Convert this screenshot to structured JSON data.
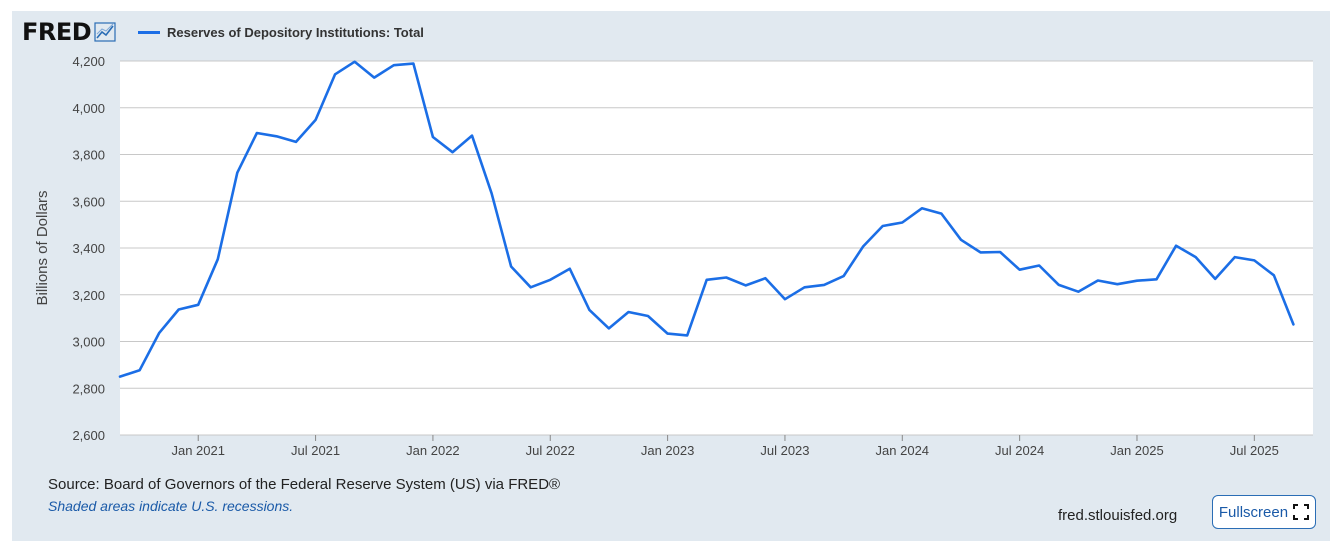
{
  "header": {
    "logo_text": "FRED",
    "legend_label": "Reserves of Depository Institutions: Total",
    "series_color": "#1b6ee6"
  },
  "footer": {
    "source": "Source: Board of Governors of the Federal Reserve System (US) via FRED®",
    "recession_note": "Shaded areas indicate U.S. recessions.",
    "site": "fred.stlouisfed.org",
    "fullscreen_label": "Fullscreen"
  },
  "icons": {
    "logo_chart": "line-chart-icon",
    "fullscreen": "fullscreen-icon"
  },
  "chart_data": {
    "type": "line",
    "ylabel": "Billions of Dollars",
    "ylim": [
      2600,
      4200
    ],
    "yticks": [
      2600,
      2800,
      3000,
      3200,
      3400,
      3600,
      3800,
      4000,
      4200
    ],
    "xlim": [
      "2020-09",
      "2025-10"
    ],
    "xticks": [
      {
        "date": "2021-01",
        "label": "Jan 2021"
      },
      {
        "date": "2021-07",
        "label": "Jul 2021"
      },
      {
        "date": "2022-01",
        "label": "Jan 2022"
      },
      {
        "date": "2022-07",
        "label": "Jul 2022"
      },
      {
        "date": "2023-01",
        "label": "Jan 2023"
      },
      {
        "date": "2023-07",
        "label": "Jul 2023"
      },
      {
        "date": "2024-01",
        "label": "Jan 2024"
      },
      {
        "date": "2024-07",
        "label": "Jul 2024"
      },
      {
        "date": "2025-01",
        "label": "Jan 2025"
      },
      {
        "date": "2025-07",
        "label": "Jul 2025"
      }
    ],
    "grid": true,
    "legend": "top-left",
    "series": [
      {
        "name": "Reserves of Depository Institutions: Total",
        "color": "#1b6ee6",
        "x": [
          "2020-09",
          "2020-10",
          "2020-11",
          "2020-12",
          "2021-01",
          "2021-02",
          "2021-03",
          "2021-04",
          "2021-05",
          "2021-06",
          "2021-07",
          "2021-08",
          "2021-09",
          "2021-10",
          "2021-11",
          "2021-12",
          "2022-01",
          "2022-02",
          "2022-03",
          "2022-04",
          "2022-05",
          "2022-06",
          "2022-07",
          "2022-08",
          "2022-09",
          "2022-10",
          "2022-11",
          "2022-12",
          "2023-01",
          "2023-02",
          "2023-03",
          "2023-04",
          "2023-05",
          "2023-06",
          "2023-07",
          "2023-08",
          "2023-09",
          "2023-10",
          "2023-11",
          "2023-12",
          "2024-01",
          "2024-02",
          "2024-03",
          "2024-04",
          "2024-05",
          "2024-06",
          "2024-07",
          "2024-08",
          "2024-09",
          "2024-10",
          "2024-11",
          "2024-12",
          "2025-01",
          "2025-02",
          "2025-03",
          "2025-04",
          "2025-05",
          "2025-06",
          "2025-07",
          "2025-08",
          "2025-09"
        ],
        "values": [
          2850,
          2877,
          3036,
          3137,
          3157,
          3352,
          3722,
          3892,
          3878,
          3854,
          3948,
          4143,
          4197,
          4129,
          4182,
          4189,
          3875,
          3810,
          3881,
          3634,
          3321,
          3232,
          3264,
          3311,
          3135,
          3056,
          3126,
          3109,
          3034,
          3026,
          3264,
          3274,
          3240,
          3271,
          3181,
          3232,
          3242,
          3280,
          3407,
          3494,
          3509,
          3570,
          3547,
          3435,
          3381,
          3383,
          3307,
          3325,
          3242,
          3213,
          3261,
          3245,
          3260,
          3266,
          3410,
          3361,
          3268,
          3361,
          3347,
          3283,
          3073
        ]
      }
    ]
  }
}
